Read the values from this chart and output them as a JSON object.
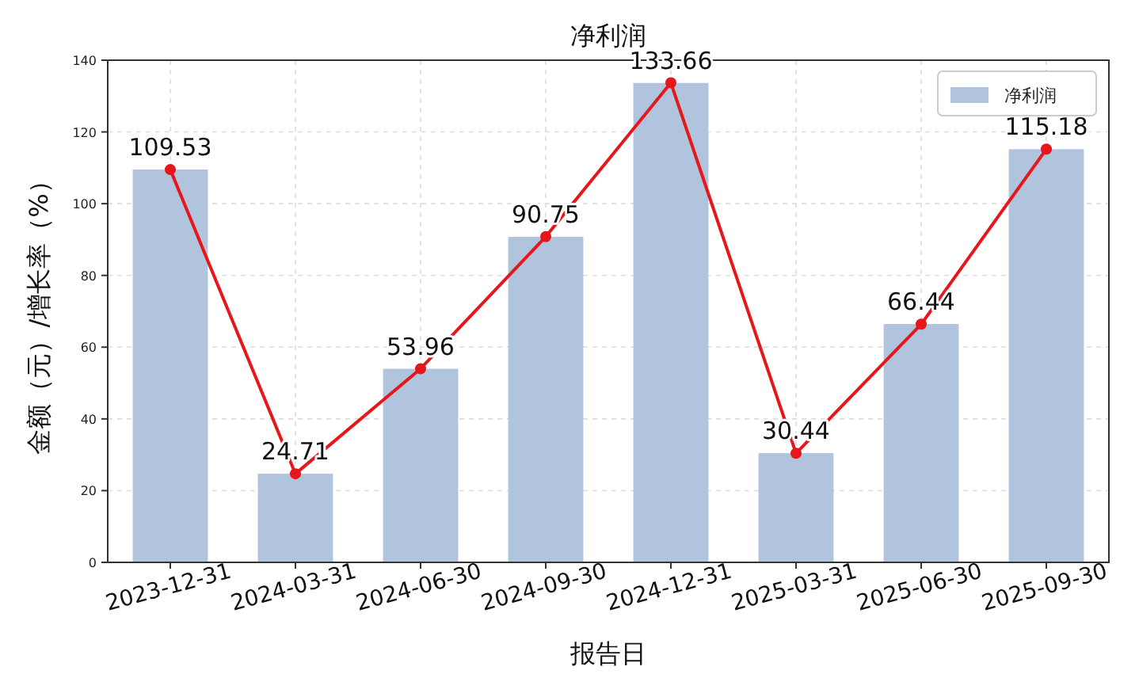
{
  "chart_data": {
    "type": "bar",
    "title": "净利润",
    "xlabel": "报告日",
    "ylabel": "金额（元）/增长率（%）",
    "categories": [
      "2023-12-31",
      "2024-03-31",
      "2024-06-30",
      "2024-09-30",
      "2024-12-31",
      "2025-03-31",
      "2025-06-30",
      "2025-09-30"
    ],
    "series": [
      {
        "name": "净利润",
        "color": "#b0c4de",
        "values": [
          109.53,
          24.71,
          53.96,
          90.75,
          133.66,
          30.44,
          66.44,
          115.18
        ],
        "value_labels": [
          "109.53",
          "24.71",
          "53.96",
          "90.75",
          "133.66",
          "30.44",
          "66.44",
          "115.18"
        ]
      },
      {
        "type": "line",
        "color": "#e6161b",
        "marker": "circle",
        "values": [
          109.5,
          24.7,
          54.0,
          90.8,
          133.7,
          30.4,
          66.4,
          115.2
        ]
      }
    ],
    "ylim": [
      0,
      140
    ],
    "yticks": [
      0,
      20,
      40,
      60,
      80,
      100,
      120,
      140
    ],
    "grid": true,
    "legend": "top right"
  }
}
